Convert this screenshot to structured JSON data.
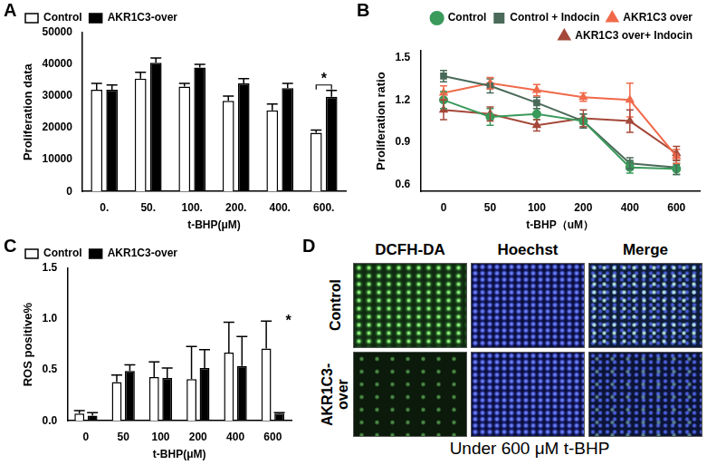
{
  "chart_data": [
    {
      "panel": "A",
      "type": "bar",
      "categories": [
        "0.",
        "50.",
        "100.",
        "200.",
        "400.",
        "600."
      ],
      "xlabel": "t-BHP(μM)",
      "ylabel": "Proliferation data",
      "ylim": [
        0,
        50000
      ],
      "yticks": [
        0,
        10000,
        20000,
        30000,
        40000,
        50000
      ],
      "grid": false,
      "legend": "upper left",
      "series": [
        {
          "name": "Control",
          "color": "#ffffff",
          "values": [
            32000,
            35500,
            33000,
            28500,
            25500,
            18500
          ],
          "errors": [
            2000,
            2000,
            1000,
            1500,
            2000,
            800
          ]
        },
        {
          "name": "AKR1C3-over",
          "color": "#000000",
          "values": [
            32000,
            40500,
            39000,
            34000,
            32500,
            29800
          ],
          "errors": [
            1500,
            1500,
            1000,
            1500,
            1500,
            2000
          ]
        }
      ],
      "annotations": [
        {
          "text": "*",
          "category": "600."
        }
      ]
    },
    {
      "panel": "B",
      "type": "line",
      "categories": [
        "0",
        "50",
        "100",
        "200",
        "400",
        "600"
      ],
      "xlabel": "t-BHP（uM）",
      "ylabel": "Proliferation ratio",
      "ylim": [
        0.55,
        1.55
      ],
      "yticks": [
        0.6,
        0.9,
        1.2,
        1.5
      ],
      "grid": false,
      "legend": "upper right",
      "series": [
        {
          "name": "Control",
          "color": "#3a9a5b",
          "marker": "circle",
          "values": [
            1.2,
            1.08,
            1.1,
            1.05,
            0.72,
            0.71
          ],
          "errors": [
            0.06,
            0.06,
            0.04,
            0.05,
            0.04,
            0.04
          ]
        },
        {
          "name": "Control + Indocin",
          "color": "#4a6a5a",
          "marker": "square",
          "values": [
            1.37,
            1.3,
            1.18,
            1.05,
            0.75,
            0.72
          ],
          "errors": [
            0.04,
            0.05,
            0.04,
            0.05,
            0.04,
            0.05
          ]
        },
        {
          "name": "AKR1C3 over",
          "color": "#f06a4a",
          "marker": "triangle",
          "values": [
            1.25,
            1.32,
            1.27,
            1.22,
            1.2,
            0.8
          ],
          "errors": [
            0.05,
            0.04,
            0.04,
            0.03,
            0.12,
            0.05
          ]
        },
        {
          "name": "AKR1C3 over+ Indocin",
          "color": "#a5483a",
          "marker": "triangle",
          "values": [
            1.13,
            1.1,
            1.02,
            1.07,
            1.05,
            0.82
          ],
          "errors": [
            0.07,
            0.05,
            0.04,
            0.06,
            0.08,
            0.05
          ]
        }
      ]
    },
    {
      "panel": "C",
      "type": "bar",
      "categories": [
        "0",
        "50",
        "100",
        "200",
        "400",
        "600"
      ],
      "xlabel": "t-BHP(μM)",
      "ylabel": "ROS positive%",
      "ylim": [
        0,
        1.5
      ],
      "yticks": [
        {
          "value": 0,
          "label": "0.0"
        },
        0.5,
        {
          "value": 1,
          "label": "1.0"
        },
        1.5
      ],
      "grid": false,
      "legend": "upper left",
      "series": [
        {
          "name": "Control",
          "color": "#ffffff",
          "values": [
            0.07,
            0.38,
            0.43,
            0.41,
            0.67,
            0.71
          ],
          "errors": [
            0.03,
            0.07,
            0.15,
            0.32,
            0.3,
            0.27
          ]
        },
        {
          "name": "AKR1C3-over",
          "color": "#000000",
          "values": [
            0.05,
            0.49,
            0.42,
            0.52,
            0.54,
            0.07
          ],
          "errors": [
            0.03,
            0.06,
            0.1,
            0.18,
            0.29,
            0.01
          ]
        }
      ],
      "annotations": [
        {
          "text": "*",
          "category": "600"
        }
      ]
    }
  ],
  "image_panel": {
    "panel": "D",
    "columns": [
      "DCFH-DA",
      "Hoechst",
      "Merge"
    ],
    "rows": [
      "Control",
      "AKR1C3-over"
    ],
    "caption": "Under 600 μM t-BHP"
  }
}
